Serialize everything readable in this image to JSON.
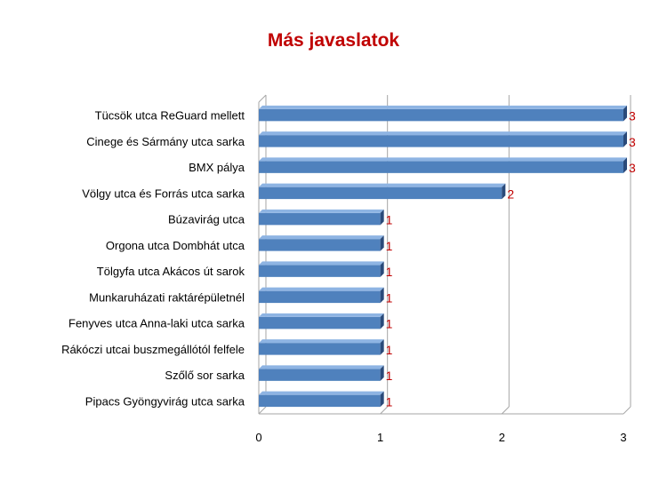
{
  "chart_data": {
    "type": "bar",
    "orientation": "horizontal",
    "title": "Más javaslatok",
    "categories": [
      "Tücsök utca ReGuard mellett",
      "Cinege és Sármány utca sarka",
      "BMX pálya",
      "Völgy utca és Forrás utca sarka",
      "Búzavirág utca",
      "Orgona utca Dombhát utca",
      "Tölgyfa utca Akácos út sarok",
      "Munkaruházati raktárépületnél",
      "Fenyves utca Anna-laki utca sarka",
      "Rákóczi utcai buszmegállótól felfele",
      "Szőlő sor sarka",
      "Pipacs Gyöngyvirág utca sarka"
    ],
    "values": [
      3,
      3,
      3,
      2,
      1,
      1,
      1,
      1,
      1,
      1,
      1,
      1
    ],
    "xlim": [
      0,
      3
    ],
    "xticks": [
      "0",
      "1",
      "2",
      "3"
    ],
    "grid": true,
    "legend": "none",
    "three_d": true,
    "data_labels": true,
    "colors": {
      "title": "#c00000",
      "bar_front": "#4f81bd",
      "bar_top": "#8eb4e3",
      "bar_side": "#2a4a7a",
      "data_label": "#c00000",
      "gridline": "#a6a6a6"
    }
  }
}
